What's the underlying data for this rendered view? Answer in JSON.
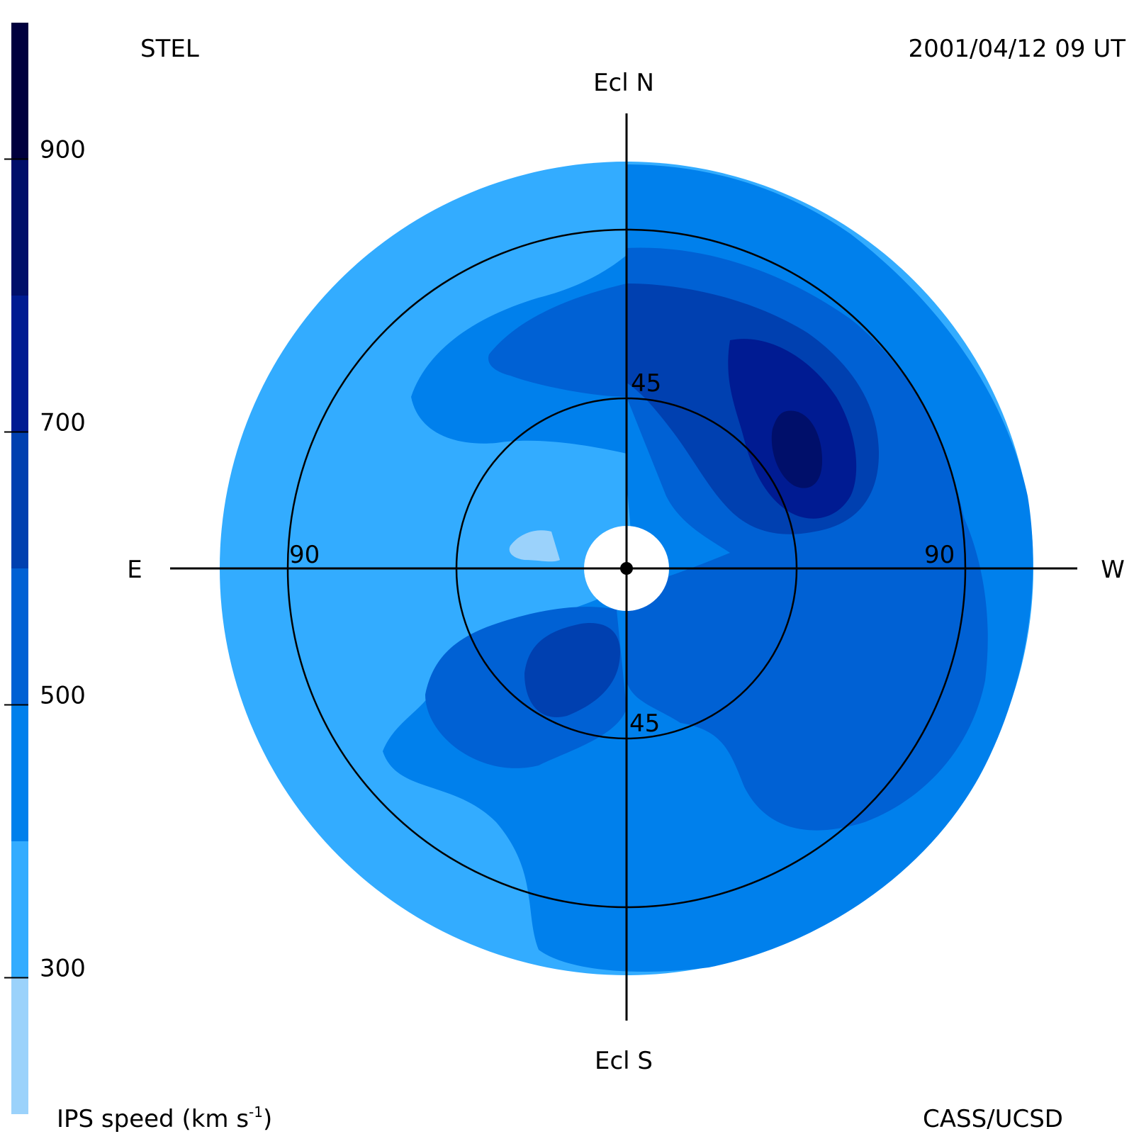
{
  "header": {
    "left_label": "STEL",
    "right_label": "2001/04/12 09 UT"
  },
  "footer": {
    "left_label_main": "IPS speed (km s",
    "left_label_sup": "-1",
    "left_label_close": ")",
    "right_label": "CASS/UCSD"
  },
  "compass": {
    "top": "Ecl N",
    "bottom": "Ecl S",
    "left": "E",
    "right": "W"
  },
  "rings": {
    "inner_label_top": "45",
    "inner_label_bottom": "45",
    "outer_label_left": "90",
    "outer_label_right": "90"
  },
  "colorbar": {
    "ticks": [
      "300",
      "500",
      "700",
      "900"
    ],
    "colors": [
      "#9bd2fb",
      "#33acff",
      "#0080ec",
      "#0061d4",
      "#0040b0",
      "#001b92",
      "#000f6a",
      "#00003e"
    ]
  },
  "chart_data": {
    "type": "heatmap",
    "title": "",
    "projection": "polar sky map (elongation from Sun)",
    "colorbar_label": "IPS speed (km s-1)",
    "colorbar_range": [
      200,
      1000
    ],
    "colorbar_ticks": [
      300,
      500,
      700,
      900
    ],
    "rings_elongation_deg": [
      45,
      90
    ],
    "directions": [
      "Ecl N",
      "Ecl S",
      "E",
      "W"
    ],
    "levels": [
      {
        "range": [
          200,
          300
        ],
        "color": "#9bd2fb"
      },
      {
        "range": [
          300,
          400
        ],
        "color": "#33acff"
      },
      {
        "range": [
          400,
          500
        ],
        "color": "#0080ec"
      },
      {
        "range": [
          500,
          600
        ],
        "color": "#0061d4"
      },
      {
        "range": [
          600,
          700
        ],
        "color": "#0040b0"
      },
      {
        "range": [
          700,
          800
        ],
        "color": "#001b92"
      },
      {
        "range": [
          800,
          900
        ],
        "color": "#000f6a"
      },
      {
        "range": [
          900,
          1000
        ],
        "color": "#00003e"
      }
    ]
  }
}
